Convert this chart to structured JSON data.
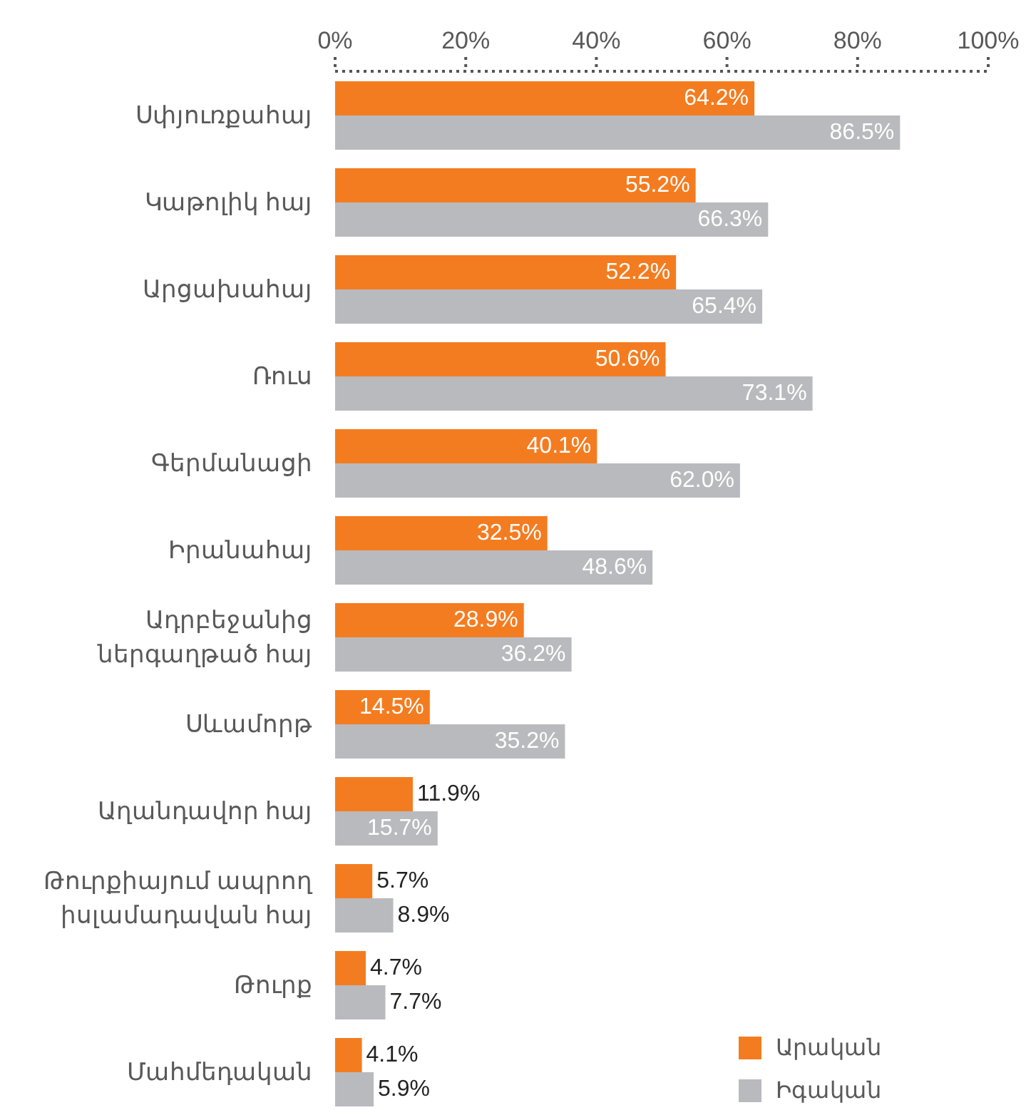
{
  "chart_data": {
    "type": "bar",
    "orientation": "horizontal",
    "categories": [
      "Սփյուռքահայ",
      "Կաթոլիկ հայ",
      "Արցախահայ",
      "Ռուս",
      "Գերմանացի",
      "Իրանահայ",
      "Ադրբեջանից ներգաղթած հայ",
      "Սևամորթ",
      "Աղանդավոր հայ",
      "Թուրքիայում ապրող իսլամադավան հայ",
      "Թուրք",
      "Մահմեդական"
    ],
    "series": [
      {
        "name": "Արական",
        "color": "#f47c20",
        "values": [
          64.2,
          55.2,
          52.2,
          50.6,
          40.1,
          32.5,
          28.9,
          14.5,
          11.9,
          5.7,
          4.7,
          4.1
        ],
        "value_labels": [
          "64.2%",
          "55.2%",
          "52.2%",
          "50.6%",
          "40.1%",
          "32.5%",
          "28.9%",
          "14.5%",
          "11.9%",
          "5.7%",
          "4.7%",
          "4.1%"
        ]
      },
      {
        "name": "Իգական",
        "color": "#b9babe",
        "values": [
          86.5,
          66.3,
          65.4,
          73.1,
          62.0,
          48.6,
          36.2,
          35.2,
          15.7,
          8.9,
          7.7,
          5.9
        ],
        "value_labels": [
          "86.5%",
          "66.3%",
          "65.4%",
          "73.1%",
          "62.0%",
          "48.6%",
          "36.2%",
          "35.2%",
          "15.7%",
          "8.9%",
          "7.7%",
          "5.9%"
        ]
      }
    ],
    "xlim": [
      0,
      100
    ],
    "xticks": [
      {
        "value": 0,
        "label": "0%"
      },
      {
        "value": 20,
        "label": "20%"
      },
      {
        "value": 40,
        "label": "40%"
      },
      {
        "value": 60,
        "label": "60%"
      },
      {
        "value": 80,
        "label": "80%"
      },
      {
        "value": 100,
        "label": "100%"
      }
    ],
    "legend": "bottom right"
  }
}
